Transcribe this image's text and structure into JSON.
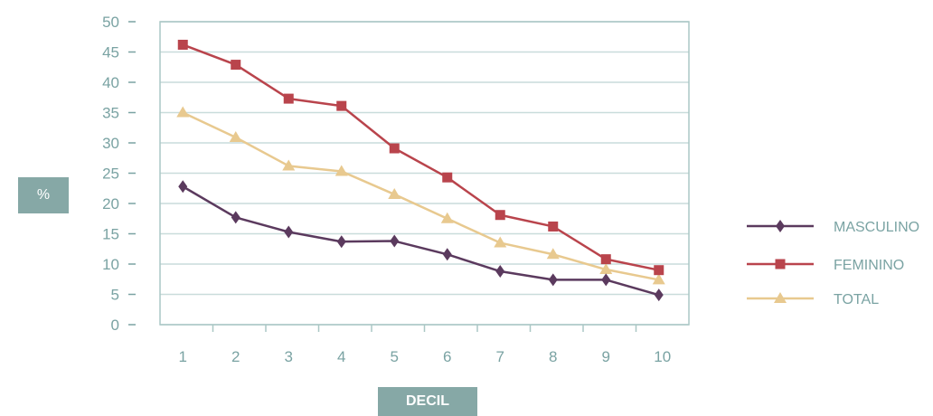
{
  "chart_data": {
    "type": "line",
    "title": "",
    "xlabel": "DECIL",
    "ylabel": "%",
    "categories": [
      "1",
      "2",
      "3",
      "4",
      "5",
      "6",
      "7",
      "8",
      "9",
      "10"
    ],
    "ylim": [
      0,
      50
    ],
    "yticks": [
      0,
      5,
      10,
      15,
      20,
      25,
      30,
      35,
      40,
      45,
      50
    ],
    "grid": true,
    "legend_position": "right",
    "series": [
      {
        "name": "MASCULINO",
        "color": "#5b3a5e",
        "marker": "diamond",
        "values": [
          22.8,
          17.7,
          15.3,
          13.7,
          13.8,
          11.6,
          8.8,
          7.4,
          7.4,
          4.9
        ]
      },
      {
        "name": "FEMININO",
        "color": "#b9444c",
        "marker": "square",
        "values": [
          46.2,
          42.9,
          37.3,
          36.1,
          29.1,
          24.3,
          18.1,
          16.2,
          10.8,
          9.0
        ]
      },
      {
        "name": "TOTAL",
        "color": "#e8c98f",
        "marker": "triangle",
        "values": [
          35.0,
          30.9,
          26.2,
          25.3,
          21.5,
          17.5,
          13.5,
          11.6,
          9.1,
          7.4
        ]
      }
    ]
  }
}
